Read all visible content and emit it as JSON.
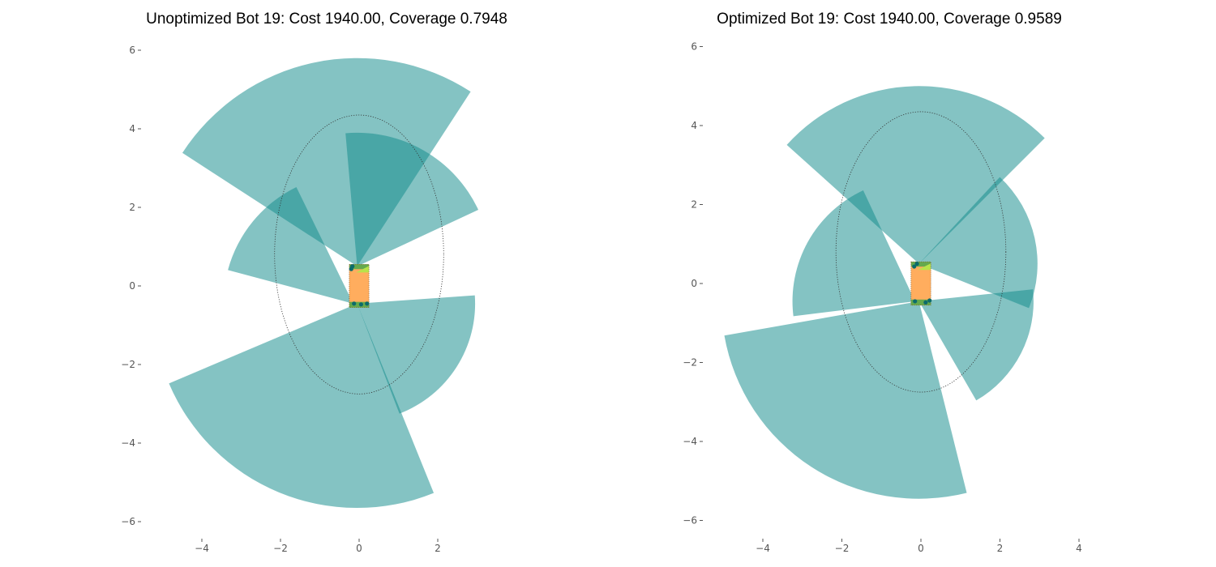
{
  "colors": {
    "fov": "#138c8c",
    "fov_opacity": 0.52,
    "body_fill": "#ffad5e",
    "body_edge": "#7a4f1f",
    "sensor_strip": "#4aa84a",
    "sensor_dot": "#0c6b6b",
    "highlight": "#b8e34a",
    "envelope": "#333333"
  },
  "chart_data": [
    {
      "type": "polar-fov",
      "title": "Unoptimized Bot 19: Cost 1940.00, Coverage 0.7948",
      "xlabel": "",
      "ylabel": "",
      "xlim": [
        -5.8,
        6.4
      ],
      "ylim": [
        -6.2,
        6.2
      ],
      "xticks": [
        -4,
        -2,
        0,
        2
      ],
      "yticks": [
        -6,
        -4,
        -2,
        0,
        2,
        4,
        6
      ],
      "xtick_labels": [
        "−4",
        "−2",
        "0",
        "2"
      ],
      "ytick_labels": [
        "−6",
        "−4",
        "−2",
        "0",
        "2",
        "4",
        "6"
      ],
      "grid": false,
      "envelope": {
        "cx": 0,
        "cy": 0.8,
        "rx": 2.15,
        "ry": 3.55
      },
      "robot_body": {
        "x": -0.25,
        "y": -0.55,
        "width": 0.5,
        "height": 1.1
      },
      "sectors": [
        {
          "cx": -0.05,
          "cy": 0.5,
          "radius": 5.3,
          "theta1_deg": 57,
          "theta2_deg": 147
        },
        {
          "cx": -0.05,
          "cy": 0.5,
          "radius": 3.4,
          "theta1_deg": 25,
          "theta2_deg": 95
        },
        {
          "cx": -0.15,
          "cy": -0.45,
          "radius": 3.3,
          "theta1_deg": 116,
          "theta2_deg": 165
        },
        {
          "cx": -0.05,
          "cy": -0.45,
          "radius": 5.2,
          "theta1_deg": 203,
          "theta2_deg": 292
        },
        {
          "cx": -0.05,
          "cy": -0.45,
          "radius": 3.0,
          "theta1_deg": -69,
          "theta2_deg": 4
        }
      ],
      "sensors": [
        {
          "x": -0.17,
          "y": 0.5
        },
        {
          "x": -0.2,
          "y": 0.43
        },
        {
          "x": -0.13,
          "y": -0.45
        },
        {
          "x": 0.05,
          "y": -0.47
        },
        {
          "x": 0.2,
          "y": -0.45
        }
      ]
    },
    {
      "type": "polar-fov",
      "title": "Optimized Bot 19: Cost 1940.00, Coverage 0.9589",
      "xlabel": "",
      "ylabel": "",
      "xlim": [
        -5.8,
        6.4
      ],
      "ylim": [
        -6.2,
        6.2
      ],
      "xticks": [
        -4,
        -2,
        0,
        2,
        4
      ],
      "yticks": [
        -6,
        -4,
        -2,
        0,
        2,
        4,
        6
      ],
      "xtick_labels": [
        "−4",
        "−2",
        "0",
        "2",
        "4"
      ],
      "ytick_labels": [
        "−6",
        "−4",
        "−2",
        "0",
        "2",
        "4",
        "6"
      ],
      "grid": false,
      "envelope": {
        "cx": 0,
        "cy": 0.8,
        "rx": 2.15,
        "ry": 3.55
      },
      "robot_body": {
        "x": -0.25,
        "y": -0.55,
        "width": 0.5,
        "height": 1.1
      },
      "sectors": [
        {
          "cx": -0.05,
          "cy": 0.5,
          "radius": 4.5,
          "theta1_deg": 45,
          "theta2_deg": 138
        },
        {
          "cx": -0.05,
          "cy": 0.5,
          "radius": 3.0,
          "theta1_deg": -22,
          "theta2_deg": 47
        },
        {
          "cx": -0.15,
          "cy": -0.45,
          "radius": 3.1,
          "theta1_deg": 115,
          "theta2_deg": 187
        },
        {
          "cx": -0.05,
          "cy": -0.45,
          "radius": 5.0,
          "theta1_deg": 190,
          "theta2_deg": 284
        },
        {
          "cx": -0.05,
          "cy": -0.45,
          "radius": 2.9,
          "theta1_deg": -60,
          "theta2_deg": 6
        }
      ],
      "sensors": [
        {
          "x": -0.17,
          "y": 0.43
        },
        {
          "x": -0.1,
          "y": 0.5
        },
        {
          "x": -0.15,
          "y": -0.45
        },
        {
          "x": 0.12,
          "y": -0.48
        },
        {
          "x": 0.22,
          "y": -0.43
        }
      ]
    }
  ]
}
